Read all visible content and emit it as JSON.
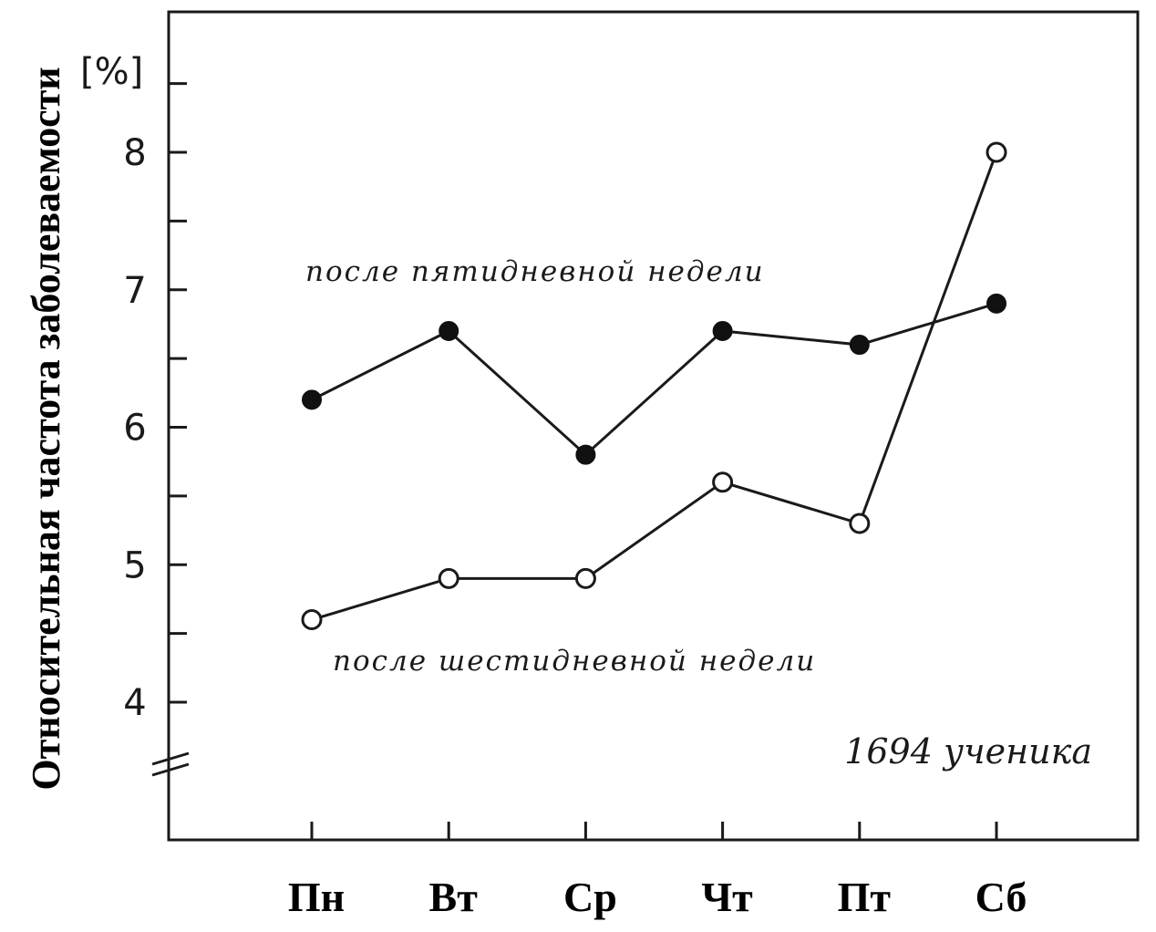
{
  "chart_data": {
    "type": "line",
    "categories": [
      "Пн",
      "Вт",
      "Ср",
      "Чт",
      "Пт",
      "Сб"
    ],
    "series": [
      {
        "name": "после пятидневной недели",
        "marker": "filled",
        "values": [
          6.2,
          6.7,
          5.8,
          6.7,
          6.6,
          6.9
        ]
      },
      {
        "name": "после шестидневной недели",
        "marker": "open",
        "values": [
          4.6,
          4.9,
          4.9,
          5.6,
          5.3,
          8.0
        ]
      }
    ],
    "ylabel": "Относительная частота заболеваемости",
    "yunit": "[%]",
    "yticks": [
      4,
      5,
      6,
      7,
      8
    ],
    "ylim": [
      3.5,
      8.6
    ],
    "axis_break": true,
    "grid": false,
    "annotation": "1694 ученика"
  }
}
